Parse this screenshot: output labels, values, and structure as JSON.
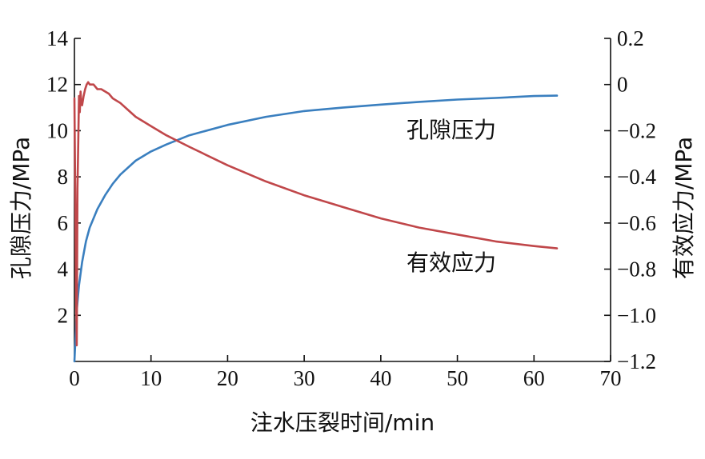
{
  "chart_data": {
    "type": "line",
    "xlabel": "注水压裂时间/min",
    "ylabel_left": "孔隙压力/MPa",
    "ylabel_right": "有效应力/MPa",
    "xlim": [
      0,
      70
    ],
    "ylim_left": [
      0,
      14
    ],
    "ylim_right": [
      -1.2,
      0.2
    ],
    "x_ticks": [
      "0",
      "10",
      "20",
      "30",
      "40",
      "50",
      "60",
      "70"
    ],
    "y_left_ticks": [
      "2",
      "4",
      "6",
      "8",
      "10",
      "12",
      "14"
    ],
    "y_right_ticks": [
      "−1.2",
      "−1.0",
      "−0.8",
      "−0.6",
      "−0.4",
      "−0.2",
      "0",
      "0.2"
    ],
    "grid": false,
    "annotations": {
      "pore_pressure": "孔隙压力",
      "effective_stress": "有效应力"
    },
    "series": [
      {
        "name": "孔隙压力",
        "axis": "left",
        "color": "#3a7fbf",
        "x": [
          0,
          0.3,
          0.6,
          1,
          1.5,
          2,
          3,
          4,
          5,
          6,
          8,
          10,
          12,
          15,
          20,
          25,
          30,
          35,
          40,
          45,
          50,
          55,
          60,
          63
        ],
        "y": [
          0.0,
          2.2,
          3.3,
          4.3,
          5.2,
          5.8,
          6.6,
          7.2,
          7.7,
          8.1,
          8.7,
          9.1,
          9.4,
          9.8,
          10.25,
          10.6,
          10.85,
          11.0,
          11.13,
          11.25,
          11.35,
          11.42,
          11.5,
          11.52
        ]
      },
      {
        "name": "有效应力",
        "axis": "right",
        "color": "#c0474a",
        "x": [
          0,
          0.2,
          0.3,
          0.4,
          0.5,
          0.6,
          0.7,
          0.8,
          0.9,
          1.0,
          1.2,
          1.4,
          1.6,
          1.8,
          2.0,
          2.5,
          3.0,
          3.5,
          4.0,
          4.5,
          5.0,
          6.0,
          7.0,
          8.0,
          9.0,
          10.0,
          12.0,
          15.0,
          20.0,
          25.0,
          30.0,
          35.0,
          40.0,
          45.0,
          50.0,
          55.0,
          60.0,
          63.0
        ],
        "y": [
          -0.06,
          -0.85,
          -1.13,
          -0.45,
          -0.25,
          -0.05,
          -0.12,
          -0.03,
          -0.08,
          -0.09,
          -0.05,
          -0.02,
          0.0,
          0.01,
          0.0,
          0.0,
          -0.02,
          -0.02,
          -0.03,
          -0.04,
          -0.06,
          -0.08,
          -0.11,
          -0.14,
          -0.16,
          -0.18,
          -0.22,
          -0.27,
          -0.35,
          -0.42,
          -0.48,
          -0.53,
          -0.58,
          -0.62,
          -0.65,
          -0.68,
          -0.7,
          -0.71
        ]
      }
    ]
  }
}
